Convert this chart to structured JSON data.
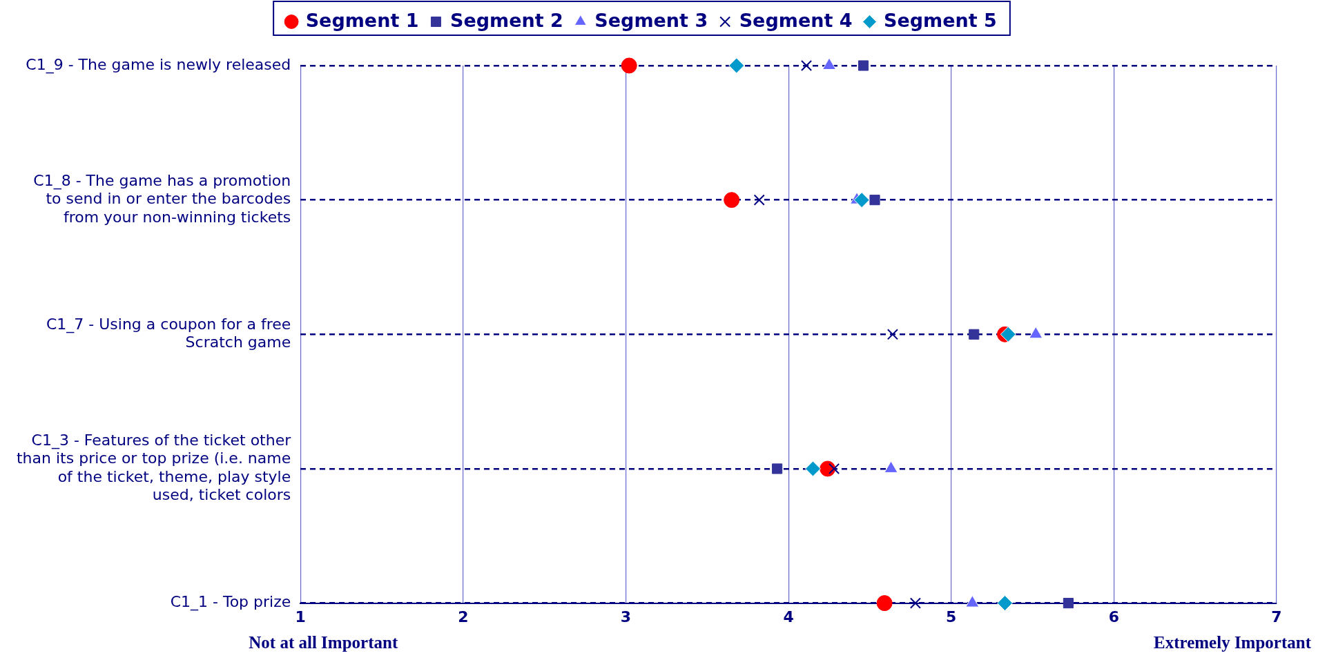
{
  "chart_data": {
    "type": "scatter",
    "categories": [
      "C1_9 - The game is newly released",
      "C1_8 - The game has a promotion to send in or enter the barcodes from your non-winning tickets",
      "C1_7 - Using a coupon for a free Scratch game",
      "C1_3 - Features of the ticket other than its price or top prize (i.e. name of the ticket, theme, play style used, ticket colors",
      "C1_1 - Top prize"
    ],
    "series": [
      {
        "name": "Segment 1",
        "color": "#ff0000",
        "marker": "circle",
        "values": [
          3.02,
          3.65,
          5.33,
          4.24,
          4.59
        ]
      },
      {
        "name": "Segment 2",
        "color": "#333399",
        "marker": "square",
        "values": [
          4.46,
          4.53,
          5.14,
          3.93,
          5.72
        ]
      },
      {
        "name": "Segment 3",
        "color": "#6666ff",
        "marker": "triangle",
        "values": [
          4.25,
          4.42,
          5.52,
          4.63,
          5.13
        ]
      },
      {
        "name": "Segment 4",
        "color": "#000080",
        "marker": "cross",
        "values": [
          4.11,
          3.82,
          4.64,
          4.28,
          4.78
        ]
      },
      {
        "name": "Segment 5",
        "color": "#0099cc",
        "marker": "diamond",
        "values": [
          3.68,
          4.45,
          5.35,
          4.15,
          5.33
        ]
      }
    ],
    "orientation": "horizontal",
    "xlim": [
      1,
      7
    ],
    "xticks": [
      1,
      2,
      3,
      4,
      5,
      6,
      7
    ],
    "grid": true,
    "legend": "top",
    "annotations": [
      "Not at all Important",
      "Extremely Important"
    ]
  }
}
